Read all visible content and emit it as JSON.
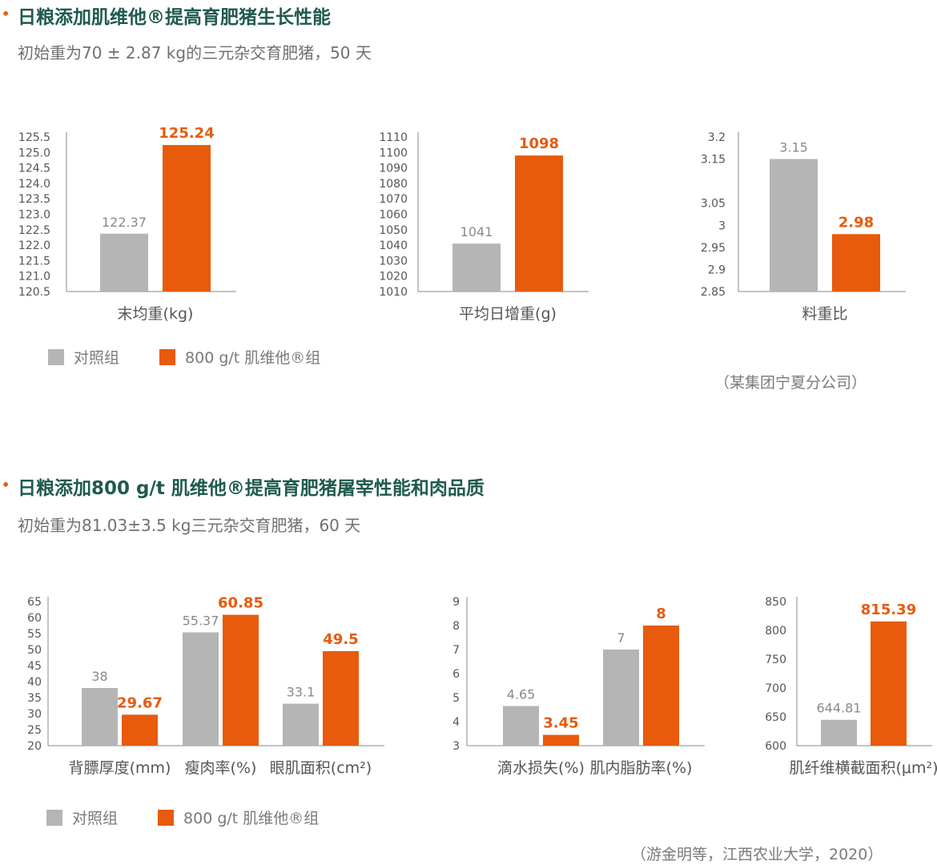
{
  "colors": {
    "control": "#b5b5b5",
    "treatment": "#e85a0c",
    "title": "#1f5a4e",
    "axis": "#888888"
  },
  "section1": {
    "title": "日粮添加肌维他®提高育肥猪生长性能",
    "subtitle": "初始重为70 ± 2.87 kg的三元杂交育肥猪，50 天",
    "legend": {
      "control": "对照组",
      "treatment": "800 g/t 肌维他®组"
    },
    "source": "（某集团宁夏分公司）"
  },
  "section2": {
    "title": "日粮添加800 g/t 肌维他®提高育肥猪屠宰性能和肉品质",
    "subtitle": "初始重为81.03±3.5 kg三元杂交育肥猪，60 天",
    "legend": {
      "control": "对照组",
      "treatment": "800 g/t 肌维他®组"
    },
    "source": "（游金明等，江西农业大学，2020）"
  },
  "chart_data": [
    {
      "type": "bar",
      "categories": [
        "末均重(kg)"
      ],
      "series": [
        {
          "key": "control",
          "values": [
            122.37
          ]
        },
        {
          "key": "treatment",
          "values": [
            125.24
          ]
        }
      ],
      "ylim": [
        120.5,
        125.5
      ],
      "yticks": [
        "125.5",
        "125.0",
        "124.5",
        "124.0",
        "123.5",
        "123.0",
        "122.5",
        "122.0",
        "121.5",
        "121.0",
        "120.5"
      ],
      "labels": [
        [
          "122.37"
        ],
        [
          "125.24"
        ]
      ]
    },
    {
      "type": "bar",
      "categories": [
        "平均日增重(g)"
      ],
      "series": [
        {
          "key": "control",
          "values": [
            1041
          ]
        },
        {
          "key": "treatment",
          "values": [
            1098
          ]
        }
      ],
      "ylim": [
        1010,
        1110
      ],
      "yticks": [
        "1110",
        "1100",
        "1090",
        "1080",
        "1070",
        "1060",
        "1050",
        "1040",
        "1030",
        "1020",
        "1010"
      ],
      "labels": [
        [
          "1041"
        ],
        [
          "1098"
        ]
      ]
    },
    {
      "type": "bar",
      "categories": [
        "料重比"
      ],
      "series": [
        {
          "key": "control",
          "values": [
            3.15
          ]
        },
        {
          "key": "treatment",
          "values": [
            2.98
          ]
        }
      ],
      "ylim": [
        2.85,
        3.2
      ],
      "yticks": [
        "3.2",
        "3.15",
        "3.05",
        "3",
        "2.95",
        "2.9",
        "2.85"
      ],
      "labels": [
        [
          "3.15"
        ],
        [
          "2.98"
        ]
      ]
    },
    {
      "type": "bar",
      "categories": [
        "背膘厚度(mm)",
        "瘦肉率(%)",
        "眼肌面积(cm²)"
      ],
      "series": [
        {
          "key": "control",
          "values": [
            38,
            55.37,
            33.1
          ]
        },
        {
          "key": "treatment",
          "values": [
            29.67,
            60.85,
            49.5
          ]
        }
      ],
      "ylim": [
        20,
        65
      ],
      "yticks": [
        "65",
        "60",
        "55",
        "50",
        "45",
        "40",
        "35",
        "30",
        "25",
        "20"
      ],
      "labels": [
        [
          "38",
          "55.37",
          "33.1"
        ],
        [
          "29.67",
          "60.85",
          "49.5"
        ]
      ]
    },
    {
      "type": "bar",
      "categories": [
        "滴水损失(%)",
        "肌内脂肪率(%)"
      ],
      "series": [
        {
          "key": "control",
          "values": [
            4.65,
            7
          ]
        },
        {
          "key": "treatment",
          "values": [
            3.45,
            8
          ]
        }
      ],
      "ylim": [
        3,
        9
      ],
      "yticks": [
        "9",
        "8",
        "7",
        "6",
        "5",
        "4",
        "3"
      ],
      "labels": [
        [
          "4.65",
          "7"
        ],
        [
          "3.45",
          "8"
        ]
      ]
    },
    {
      "type": "bar",
      "categories": [
        "肌纤维横截面积(μm²)"
      ],
      "series": [
        {
          "key": "control",
          "values": [
            644.81
          ]
        },
        {
          "key": "treatment",
          "values": [
            815.39
          ]
        }
      ],
      "ylim": [
        600,
        850
      ],
      "yticks": [
        "850",
        "800",
        "750",
        "700",
        "650",
        "600"
      ],
      "labels": [
        [
          "644.81"
        ],
        [
          "815.39"
        ]
      ]
    }
  ]
}
